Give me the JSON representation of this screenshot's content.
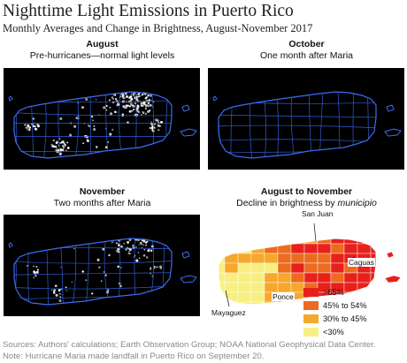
{
  "title": "Nighttime Light Emissions in Puerto Rico",
  "subtitle": "Monthly Averages and Change in Brightness, August-November 2017",
  "panels": {
    "aug": {
      "heading": "August",
      "caption": "Pre-hurricanes—normal light levels"
    },
    "oct": {
      "heading": "October",
      "caption": "One month after Maria"
    },
    "nov": {
      "heading": "November",
      "caption": "Two months after Maria"
    },
    "change": {
      "heading": "August to November",
      "caption_prefix": "Decline in brightness by",
      "caption_em": "municipio"
    }
  },
  "cities": {
    "san_juan": "San Juan",
    "caguas": "Caguas",
    "ponce": "Ponce",
    "mayaguez": "Mayaguez"
  },
  "legend": [
    {
      "label": ">65%",
      "color": "#e8201c"
    },
    {
      "label": "45% to 54%",
      "color": "#ec6b1f"
    },
    {
      "label": "30% to 45%",
      "color": "#f6a72c"
    },
    {
      "label": "<30%",
      "color": "#f7ef82"
    }
  ],
  "footer": {
    "sources": "Sources: Authors' calculations; Earth Observation Group; NOAA National Geophysical Data Center.",
    "note": "Note: Hurricane Maria made landfall in Puerto Rico on September 20."
  }
}
